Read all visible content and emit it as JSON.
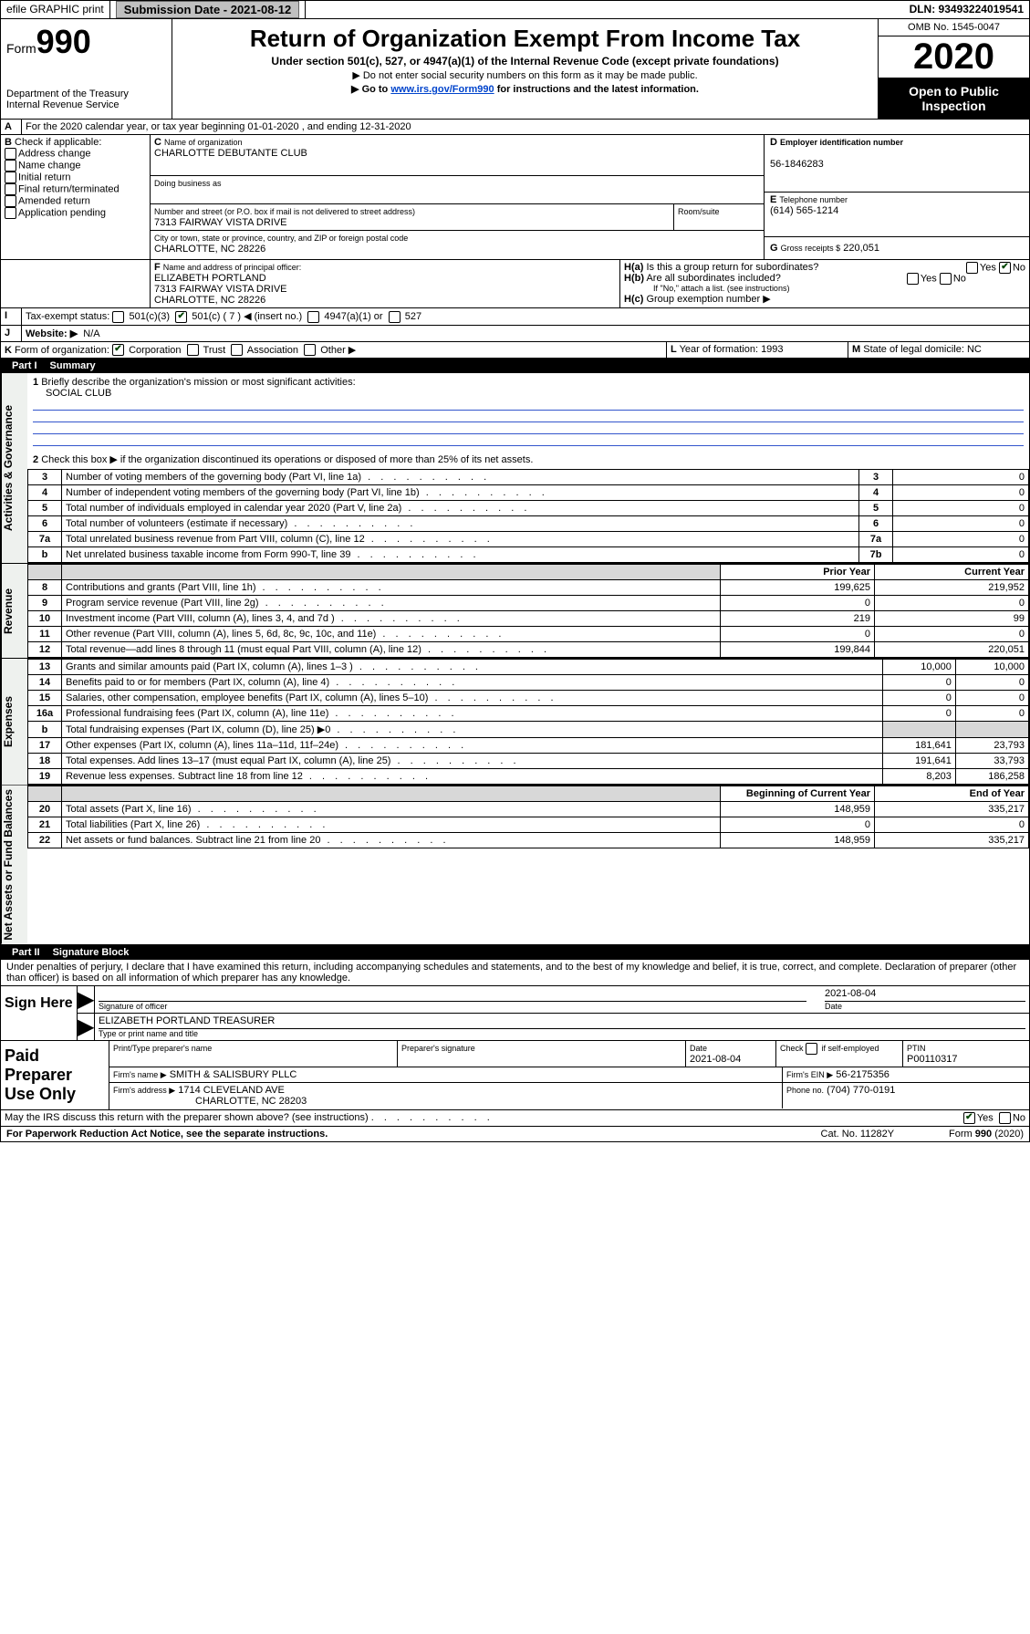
{
  "top": {
    "efile": "efile GRAPHIC print",
    "sub_label": "Submission Date - 2021-08-12",
    "dln": "DLN: 93493224019541"
  },
  "head": {
    "form_word": "Form",
    "form_no": "990",
    "dept1": "Department of the Treasury",
    "dept2": "Internal Revenue Service",
    "title": "Return of Organization Exempt From Income Tax",
    "sub1": "Under section 501(c), 527, or 4947(a)(1) of the Internal Revenue Code (except private foundations)",
    "sub2": "Do not enter social security numbers on this form as it may be made public.",
    "sub3_pre": "Go to ",
    "sub3_link": "www.irs.gov/Form990",
    "sub3_post": " for instructions and the latest information.",
    "omb": "OMB No. 1545-0047",
    "year": "2020",
    "open": "Open to Public Inspection"
  },
  "A": {
    "text": "For the 2020 calendar year, or tax year beginning 01-01-2020    , and ending 12-31-2020"
  },
  "B": {
    "label": "Check if applicable:",
    "opts": [
      "Address change",
      "Name change",
      "Initial return",
      "Final return/terminated",
      "Amended return",
      "Application pending"
    ]
  },
  "C": {
    "name_label": "Name of organization",
    "name": "CHARLOTTE DEBUTANTE CLUB",
    "dba_label": "Doing business as",
    "addr_label": "Number and street (or P.O. box if mail is not delivered to street address)",
    "room_label": "Room/suite",
    "addr": "7313 FAIRWAY VISTA DRIVE",
    "city_label": "City or town, state or province, country, and ZIP or foreign postal code",
    "city": "CHARLOTTE, NC  28226"
  },
  "D": {
    "label": "Employer identification number",
    "val": "56-1846283"
  },
  "E": {
    "label": "Telephone number",
    "val": "(614) 565-1214"
  },
  "G": {
    "label": "Gross receipts $",
    "val": "220,051"
  },
  "F": {
    "label": "Name and address of principal officer:",
    "line1": "ELIZABETH PORTLAND",
    "line2": "7313 FAIRWAY VISTA DRIVE",
    "line3": "CHARLOTTE, NC  28226"
  },
  "H": {
    "a": "Is this a group return for subordinates?",
    "b": "Are all subordinates included?",
    "b_note": "If \"No,\" attach a list. (see instructions)",
    "c": "Group exemption number ▶"
  },
  "I": {
    "label": "Tax-exempt status:",
    "o1": "501(c)(3)",
    "o2": "501(c) ( 7 ) ◀ (insert no.)",
    "o3": "4947(a)(1) or",
    "o4": "527"
  },
  "J": {
    "label": "Website: ▶",
    "val": "N/A"
  },
  "K": {
    "label": "Form of organization:",
    "opts": [
      "Corporation",
      "Trust",
      "Association",
      "Other ▶"
    ]
  },
  "L": {
    "label": "Year of formation:",
    "val": "1993"
  },
  "M": {
    "label": "State of legal domicile:",
    "val": "NC"
  },
  "partI": {
    "num": "Part I",
    "title": "Summary"
  },
  "summary": {
    "q1": "Briefly describe the organization's mission or most significant activities:",
    "q1a": "SOCIAL CLUB",
    "q2": "Check this box ▶      if the organization discontinued its operations or disposed of more than 25% of its net assets.",
    "rows_gov": [
      {
        "n": "3",
        "t": "Number of voting members of the governing body (Part VI, line 1a)",
        "lab": "3",
        "v": "0"
      },
      {
        "n": "4",
        "t": "Number of independent voting members of the governing body (Part VI, line 1b)",
        "lab": "4",
        "v": "0"
      },
      {
        "n": "5",
        "t": "Total number of individuals employed in calendar year 2020 (Part V, line 2a)",
        "lab": "5",
        "v": "0"
      },
      {
        "n": "6",
        "t": "Total number of volunteers (estimate if necessary)",
        "lab": "6",
        "v": "0"
      },
      {
        "n": "7a",
        "t": "Total unrelated business revenue from Part VIII, column (C), line 12",
        "lab": "7a",
        "v": "0"
      },
      {
        "n": "b",
        "t": "Net unrelated business taxable income from Form 990-T, line 39",
        "lab": "7b",
        "v": "0"
      }
    ],
    "hdr_prior": "Prior Year",
    "hdr_curr": "Current Year",
    "rev": [
      {
        "n": "8",
        "t": "Contributions and grants (Part VIII, line 1h)",
        "p": "199,625",
        "c": "219,952"
      },
      {
        "n": "9",
        "t": "Program service revenue (Part VIII, line 2g)",
        "p": "0",
        "c": "0"
      },
      {
        "n": "10",
        "t": "Investment income (Part VIII, column (A), lines 3, 4, and 7d )",
        "p": "219",
        "c": "99"
      },
      {
        "n": "11",
        "t": "Other revenue (Part VIII, column (A), lines 5, 6d, 8c, 9c, 10c, and 11e)",
        "p": "0",
        "c": "0"
      },
      {
        "n": "12",
        "t": "Total revenue—add lines 8 through 11 (must equal Part VIII, column (A), line 12)",
        "p": "199,844",
        "c": "220,051"
      }
    ],
    "exp": [
      {
        "n": "13",
        "t": "Grants and similar amounts paid (Part IX, column (A), lines 1–3 )",
        "p": "10,000",
        "c": "10,000"
      },
      {
        "n": "14",
        "t": "Benefits paid to or for members (Part IX, column (A), line 4)",
        "p": "0",
        "c": "0"
      },
      {
        "n": "15",
        "t": "Salaries, other compensation, employee benefits (Part IX, column (A), lines 5–10)",
        "p": "0",
        "c": "0"
      },
      {
        "n": "16a",
        "t": "Professional fundraising fees (Part IX, column (A), line 11e)",
        "p": "0",
        "c": "0"
      },
      {
        "n": "b",
        "t": "Total fundraising expenses (Part IX, column (D), line 25) ▶0",
        "p": "",
        "c": "",
        "grey": true
      },
      {
        "n": "17",
        "t": "Other expenses (Part IX, column (A), lines 11a–11d, 11f–24e)",
        "p": "181,641",
        "c": "23,793"
      },
      {
        "n": "18",
        "t": "Total expenses. Add lines 13–17 (must equal Part IX, column (A), line 25)",
        "p": "191,641",
        "c": "33,793"
      },
      {
        "n": "19",
        "t": "Revenue less expenses. Subtract line 18 from line 12",
        "p": "8,203",
        "c": "186,258"
      }
    ],
    "hdr_beg": "Beginning of Current Year",
    "hdr_end": "End of Year",
    "net": [
      {
        "n": "20",
        "t": "Total assets (Part X, line 16)",
        "p": "148,959",
        "c": "335,217"
      },
      {
        "n": "21",
        "t": "Total liabilities (Part X, line 26)",
        "p": "0",
        "c": "0"
      },
      {
        "n": "22",
        "t": "Net assets or fund balances. Subtract line 21 from line 20",
        "p": "148,959",
        "c": "335,217"
      }
    ],
    "side_gov": "Activities & Governance",
    "side_rev": "Revenue",
    "side_exp": "Expenses",
    "side_net": "Net Assets or Fund Balances"
  },
  "partII": {
    "num": "Part II",
    "title": "Signature Block"
  },
  "sig": {
    "decl": "Under penalties of perjury, I declare that I have examined this return, including accompanying schedules and statements, and to the best of my knowledge and belief, it is true, correct, and complete. Declaration of preparer (other than officer) is based on all information of which preparer has any knowledge.",
    "sign_here": "Sign Here",
    "sig_officer": "Signature of officer",
    "date": "2021-08-04",
    "date_label": "Date",
    "name_title": "ELIZABETH PORTLAND  TREASURER",
    "name_title_label": "Type or print name and title"
  },
  "paid": {
    "title": "Paid Preparer Use Only",
    "h1": "Print/Type preparer's name",
    "h2": "Preparer's signature",
    "h3": "Date",
    "h3v": "2021-08-04",
    "h4": "Check        if self-employed",
    "h5": "PTIN",
    "h5v": "P00110317",
    "firm_name_l": "Firm's name      ▶",
    "firm_name": "SMITH & SALISBURY PLLC",
    "firm_ein_l": "Firm's EIN ▶",
    "firm_ein": "56-2175356",
    "firm_addr_l": "Firm's address ▶",
    "firm_addr1": "1714 CLEVELAND AVE",
    "firm_addr2": "CHARLOTTE, NC  28203",
    "phone_l": "Phone no.",
    "phone": "(704) 770-0191"
  },
  "discuss": {
    "q": "May the IRS discuss this return with the preparer shown above? (see instructions)",
    "yes": "Yes",
    "no": "No"
  },
  "foot": {
    "left": "For Paperwork Reduction Act Notice, see the separate instructions.",
    "mid": "Cat. No. 11282Y",
    "right": "Form 990 (2020)"
  }
}
